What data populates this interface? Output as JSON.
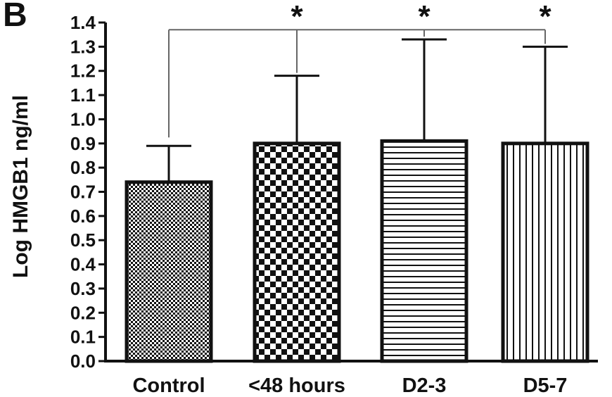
{
  "panel_label": "B",
  "chart_data": {
    "type": "bar",
    "categories": [
      "Control",
      "<48 hours",
      "D2-3",
      "D5-7"
    ],
    "values": [
      0.74,
      0.9,
      0.91,
      0.9
    ],
    "error_upper": [
      0.89,
      1.18,
      1.33,
      1.3
    ],
    "patterns": [
      "fine-checker",
      "checker",
      "horizontal-lines",
      "vertical-lines"
    ],
    "ylabel": "Log HMGB1 ng/ml",
    "xlabel": "",
    "title": "",
    "ylim": [
      0.0,
      1.4
    ],
    "yticks": [
      0.0,
      0.1,
      0.2,
      0.3,
      0.4,
      0.5,
      0.6,
      0.7,
      0.8,
      0.9,
      1.0,
      1.1,
      1.2,
      1.3,
      1.4
    ],
    "ytick_labels": [
      "0.0",
      "0.1",
      "0.2",
      "0.3",
      "0.4",
      "0.5",
      "0.6",
      "0.7",
      "0.8",
      "0.9",
      "1.0",
      "1.1",
      "1.2",
      "1.3",
      "1.4"
    ],
    "grid": false,
    "significance": {
      "bracket_from": "Control",
      "bracket_to": [
        "<48 hours",
        "D2-3",
        "D5-7"
      ],
      "marker": "*"
    }
  }
}
